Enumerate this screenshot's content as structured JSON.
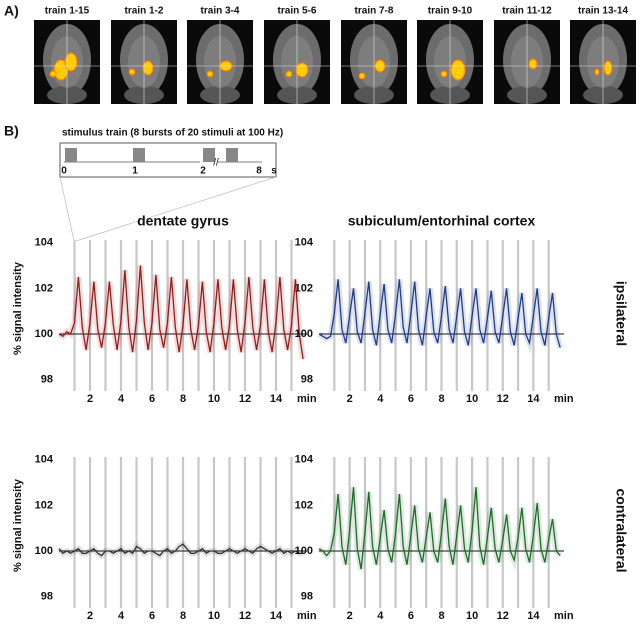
{
  "panel_a": {
    "label": "A)",
    "images": [
      "train 1-15",
      "train 1-2",
      "train 3-4",
      "train 5-6",
      "train 7-8",
      "train 9-10",
      "train 11-12",
      "train 13-14"
    ]
  },
  "panel_b": {
    "label": "B)",
    "stimulus": {
      "title": "stimulus train (8 bursts of 20 stimuli at 100 Hz)",
      "ticks": [
        0,
        1,
        2,
        8
      ],
      "unit": "s"
    }
  },
  "chart_data": [
    {
      "type": "line",
      "title": "dentate gyrus",
      "ylabel": "% signal intensity",
      "xlabel": "min",
      "color": "#9a1a1a",
      "xlim": [
        0,
        16
      ],
      "ylim": [
        97.5,
        104.3
      ],
      "xticks": [
        2,
        4,
        6,
        8,
        10,
        12,
        14
      ],
      "yticks": [
        98,
        100,
        102,
        104
      ],
      "hline": 100,
      "markers": [
        1,
        2,
        3,
        4,
        5,
        6,
        7,
        8,
        9,
        10,
        11,
        12,
        13,
        14,
        15
      ],
      "x": [
        0,
        0.25,
        0.5,
        0.75,
        1,
        1.25,
        1.5,
        1.75,
        2,
        2.25,
        2.5,
        2.75,
        3,
        3.25,
        3.5,
        3.75,
        4,
        4.25,
        4.5,
        4.75,
        5,
        5.25,
        5.5,
        5.75,
        6,
        6.25,
        6.5,
        6.75,
        7,
        7.25,
        7.5,
        7.75,
        8,
        8.25,
        8.5,
        8.75,
        9,
        9.25,
        9.5,
        9.75,
        10,
        10.25,
        10.5,
        10.75,
        11,
        11.25,
        11.5,
        11.75,
        12,
        12.25,
        12.5,
        12.75,
        13,
        13.25,
        13.5,
        13.75,
        14,
        14.25,
        14.5,
        14.75,
        15,
        15.25,
        15.5,
        15.75
      ],
      "values": [
        100.0,
        99.9,
        100.1,
        100.0,
        100.5,
        102.5,
        100.3,
        99.3,
        100.5,
        102.3,
        100.2,
        99.4,
        100.5,
        102.3,
        100.4,
        99.3,
        100.6,
        102.8,
        100.3,
        99.2,
        100.6,
        103.0,
        100.5,
        99.3,
        100.5,
        102.6,
        100.2,
        99.4,
        100.5,
        102.5,
        100.3,
        99.2,
        100.4,
        102.4,
        100.2,
        99.3,
        100.4,
        102.3,
        100.1,
        99.2,
        100.5,
        102.4,
        100.3,
        99.3,
        100.4,
        102.4,
        100.2,
        99.2,
        100.5,
        102.5,
        100.3,
        99.3,
        100.4,
        102.4,
        100.1,
        99.2,
        100.5,
        102.5,
        100.2,
        99.3,
        100.4,
        102.4,
        100.0,
        98.9
      ]
    },
    {
      "type": "line",
      "title": "subiculum/entorhinal cortex",
      "row_label": "ipsilateral",
      "xlabel": "min",
      "color": "#1f3c8c",
      "xlim": [
        0,
        16
      ],
      "ylim": [
        97.5,
        104.3
      ],
      "xticks": [
        2,
        4,
        6,
        8,
        10,
        12,
        14
      ],
      "yticks": [
        98,
        100,
        102,
        104
      ],
      "hline": 100,
      "markers": [
        1,
        2,
        3,
        4,
        5,
        6,
        7,
        8,
        9,
        10,
        11,
        12,
        13,
        14,
        15
      ],
      "x": [
        0,
        0.25,
        0.5,
        0.75,
        1,
        1.25,
        1.5,
        1.75,
        2,
        2.25,
        2.5,
        2.75,
        3,
        3.25,
        3.5,
        3.75,
        4,
        4.25,
        4.5,
        4.75,
        5,
        5.25,
        5.5,
        5.75,
        6,
        6.25,
        6.5,
        6.75,
        7,
        7.25,
        7.5,
        7.75,
        8,
        8.25,
        8.5,
        8.75,
        9,
        9.25,
        9.5,
        9.75,
        10,
        10.25,
        10.5,
        10.75,
        11,
        11.25,
        11.5,
        11.75,
        12,
        12.25,
        12.5,
        12.75,
        13,
        13.25,
        13.5,
        13.75,
        14,
        14.25,
        14.5,
        14.75,
        15,
        15.25,
        15.5,
        15.75
      ],
      "values": [
        100.0,
        99.9,
        99.8,
        99.9,
        100.9,
        102.4,
        100.2,
        99.6,
        100.8,
        102.0,
        100.1,
        99.6,
        100.9,
        102.3,
        100.2,
        99.5,
        100.9,
        102.2,
        100.2,
        99.6,
        100.9,
        102.4,
        100.3,
        99.6,
        100.9,
        102.3,
        100.2,
        99.5,
        100.8,
        102.0,
        100.1,
        99.6,
        100.8,
        102.1,
        100.2,
        99.6,
        100.8,
        102.0,
        100.1,
        99.5,
        100.8,
        102.0,
        100.2,
        99.6,
        100.7,
        101.9,
        100.1,
        99.6,
        100.8,
        102.0,
        100.1,
        99.5,
        100.7,
        101.8,
        100.0,
        99.6,
        100.8,
        102.0,
        100.1,
        99.5,
        100.7,
        101.8,
        100.0,
        99.4
      ]
    },
    {
      "type": "line",
      "ylabel": "% signal intensity",
      "xlabel": "min",
      "color": "#333333",
      "xlim": [
        0,
        16
      ],
      "ylim": [
        97.5,
        104.3
      ],
      "xticks": [
        2,
        4,
        6,
        8,
        10,
        12,
        14
      ],
      "yticks": [
        98,
        100,
        102,
        104
      ],
      "hline": 100,
      "markers": [
        1,
        2,
        3,
        4,
        5,
        6,
        7,
        8,
        9,
        10,
        11,
        12,
        13,
        14,
        15
      ],
      "x": [
        0,
        0.25,
        0.5,
        0.75,
        1,
        1.25,
        1.5,
        1.75,
        2,
        2.25,
        2.5,
        2.75,
        3,
        3.25,
        3.5,
        3.75,
        4,
        4.25,
        4.5,
        4.75,
        5,
        5.25,
        5.5,
        5.75,
        6,
        6.25,
        6.5,
        6.75,
        7,
        7.25,
        7.5,
        7.75,
        8,
        8.25,
        8.5,
        8.75,
        9,
        9.25,
        9.5,
        9.75,
        10,
        10.25,
        10.5,
        10.75,
        11,
        11.25,
        11.5,
        11.75,
        12,
        12.25,
        12.5,
        12.75,
        13,
        13.25,
        13.5,
        13.75,
        14,
        14.25,
        14.5,
        14.75,
        15,
        15.25,
        15.5,
        15.75
      ],
      "values": [
        100.1,
        99.9,
        100.0,
        99.9,
        100.0,
        100.1,
        99.9,
        99.9,
        100.0,
        100.1,
        99.9,
        99.8,
        100.0,
        100.0,
        99.9,
        100.0,
        100.1,
        99.9,
        100.0,
        99.9,
        100.2,
        100.1,
        99.9,
        100.0,
        100.0,
        99.9,
        99.8,
        100.0,
        100.1,
        99.9,
        100.0,
        100.2,
        100.3,
        100.1,
        99.9,
        99.9,
        100.0,
        100.1,
        99.9,
        100.0,
        100.0,
        99.9,
        99.9,
        100.0,
        100.1,
        100.0,
        99.9,
        100.0,
        100.1,
        100.0,
        99.9,
        100.1,
        100.2,
        100.1,
        100.0,
        99.9,
        100.0,
        100.1,
        99.9,
        100.0,
        99.9,
        100.0,
        99.9,
        99.9
      ]
    },
    {
      "type": "line",
      "row_label": "contralateral",
      "xlabel": "min",
      "color": "#1e6b2a",
      "xlim": [
        0,
        16
      ],
      "ylim": [
        97.5,
        104.3
      ],
      "xticks": [
        2,
        4,
        6,
        8,
        10,
        12,
        14
      ],
      "yticks": [
        98,
        100,
        102,
        104
      ],
      "hline": 100,
      "markers": [
        1,
        2,
        3,
        4,
        5,
        6,
        7,
        8,
        9,
        10,
        11,
        12,
        13,
        14,
        15
      ],
      "x": [
        0,
        0.25,
        0.5,
        0.75,
        1,
        1.25,
        1.5,
        1.75,
        2,
        2.25,
        2.5,
        2.75,
        3,
        3.25,
        3.5,
        3.75,
        4,
        4.25,
        4.5,
        4.75,
        5,
        5.25,
        5.5,
        5.75,
        6,
        6.25,
        6.5,
        6.75,
        7,
        7.25,
        7.5,
        7.75,
        8,
        8.25,
        8.5,
        8.75,
        9,
        9.25,
        9.5,
        9.75,
        10,
        10.25,
        10.5,
        10.75,
        11,
        11.25,
        11.5,
        11.75,
        12,
        12.25,
        12.5,
        12.75,
        13,
        13.25,
        13.5,
        13.75,
        14,
        14.25,
        14.5,
        14.75,
        15,
        15.25,
        15.5,
        15.75
      ],
      "values": [
        100.1,
        100.0,
        99.8,
        100.0,
        100.8,
        102.5,
        100.2,
        99.4,
        100.9,
        102.8,
        100.1,
        99.2,
        100.8,
        102.6,
        100.2,
        99.4,
        100.6,
        101.8,
        100.1,
        99.5,
        100.8,
        102.5,
        100.2,
        99.4,
        100.7,
        102.0,
        100.1,
        99.5,
        100.6,
        101.7,
        100.0,
        99.5,
        100.8,
        102.3,
        100.2,
        99.4,
        100.7,
        102.0,
        100.1,
        99.5,
        100.9,
        102.8,
        100.2,
        99.4,
        100.6,
        101.9,
        100.1,
        99.5,
        100.5,
        101.6,
        100.0,
        99.6,
        100.6,
        101.9,
        100.1,
        99.5,
        100.7,
        102.1,
        100.1,
        99.5,
        100.5,
        101.4,
        100.0,
        99.8
      ]
    }
  ]
}
